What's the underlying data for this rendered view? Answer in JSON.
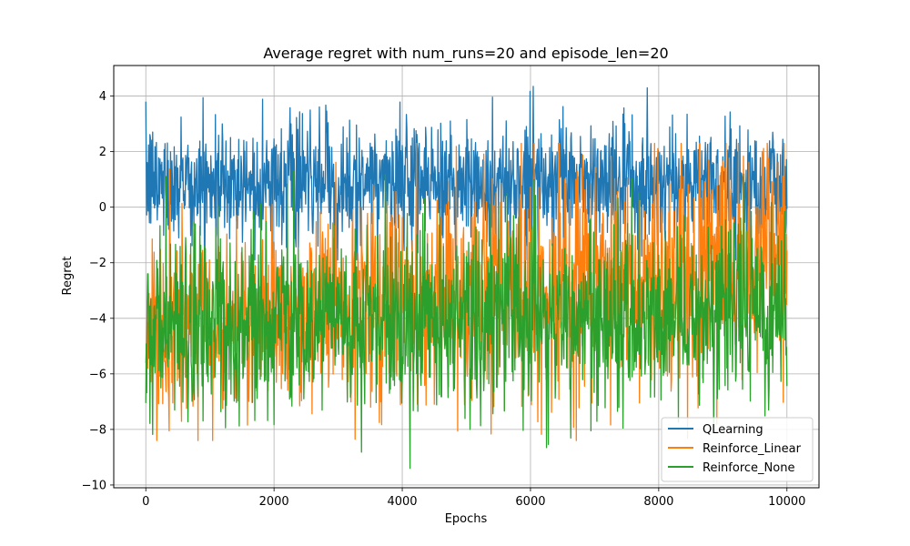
{
  "chart_data": {
    "type": "line",
    "title": "Average regret with num_runs=20 and episode_len=20",
    "xlabel": "Epochs",
    "ylabel": "Regret",
    "xlim": [
      -500,
      10500
    ],
    "ylim": [
      -10.1,
      5.1
    ],
    "xticks": [
      0,
      2000,
      4000,
      6000,
      8000,
      10000
    ],
    "yticks": [
      -10,
      -8,
      -6,
      -4,
      -2,
      0,
      2,
      4
    ],
    "xtick_labels": [
      "0",
      "2000",
      "4000",
      "6000",
      "8000",
      "10000"
    ],
    "ytick_labels": [
      "−10",
      "−8",
      "−6",
      "−4",
      "−2",
      "0",
      "2",
      "4"
    ],
    "grid": true,
    "legend_position": "lower-right",
    "x_range": [
      0,
      10000
    ],
    "series": [
      {
        "name": "QLearning",
        "color": "#1f77b4",
        "mean_start": 0.8,
        "mean_end": 0.9,
        "noise_low_start": -1.0,
        "noise_high_start": 2.8,
        "noise_low_end": -1.2,
        "noise_high_end": 2.9,
        "max": 4.4,
        "min": -1.9
      },
      {
        "name": "Reinforce_Linear",
        "color": "#ff7f0e",
        "mean_start": -4.5,
        "mean_end": -1.8,
        "noise_low_start": -7.5,
        "noise_high_start": -1.5,
        "noise_low_end": -5.5,
        "noise_high_end": 2.2,
        "max": 2.3,
        "min": -8.4
      },
      {
        "name": "Reinforce_None",
        "color": "#2ca02c",
        "mean_start": -4.3,
        "mean_end": -4.0,
        "noise_low_start": -7.3,
        "noise_high_start": -1.3,
        "noise_low_end": -6.9,
        "noise_high_end": -0.9,
        "max": 1.3,
        "min": -9.4
      }
    ]
  }
}
